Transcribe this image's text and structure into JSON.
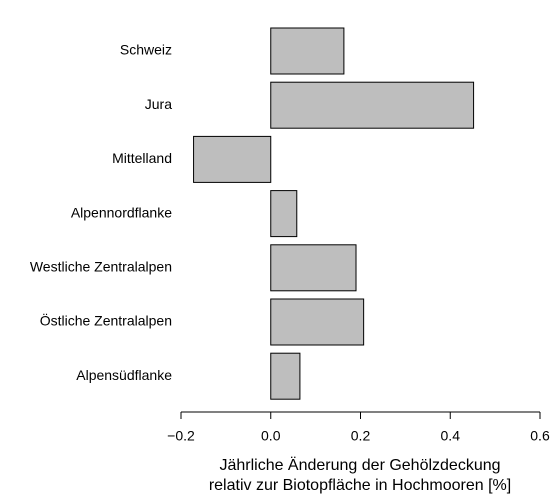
{
  "chart_data": {
    "type": "barh",
    "categories": [
      "Schweiz",
      "Jura",
      "Mittelland",
      "Alpennordflanke",
      "Westliche Zentralalpen",
      "Östliche Zentralalpen",
      "Alpensüdflanke"
    ],
    "values": [
      0.163,
      0.452,
      -0.172,
      0.058,
      0.19,
      0.207,
      0.065
    ],
    "color": "#bebebe",
    "xlim": [
      -0.2,
      0.6
    ],
    "xticks": [
      {
        "value": -0.2,
        "label": "−0.2"
      },
      {
        "value": 0,
        "label": "0.0"
      },
      0.2,
      0.4,
      0.6
    ],
    "xlabel": [
      "Jährliche Änderung der Gehölzdeckung",
      "relativ zur Biotopfläche in Hochmooren [%]"
    ]
  }
}
